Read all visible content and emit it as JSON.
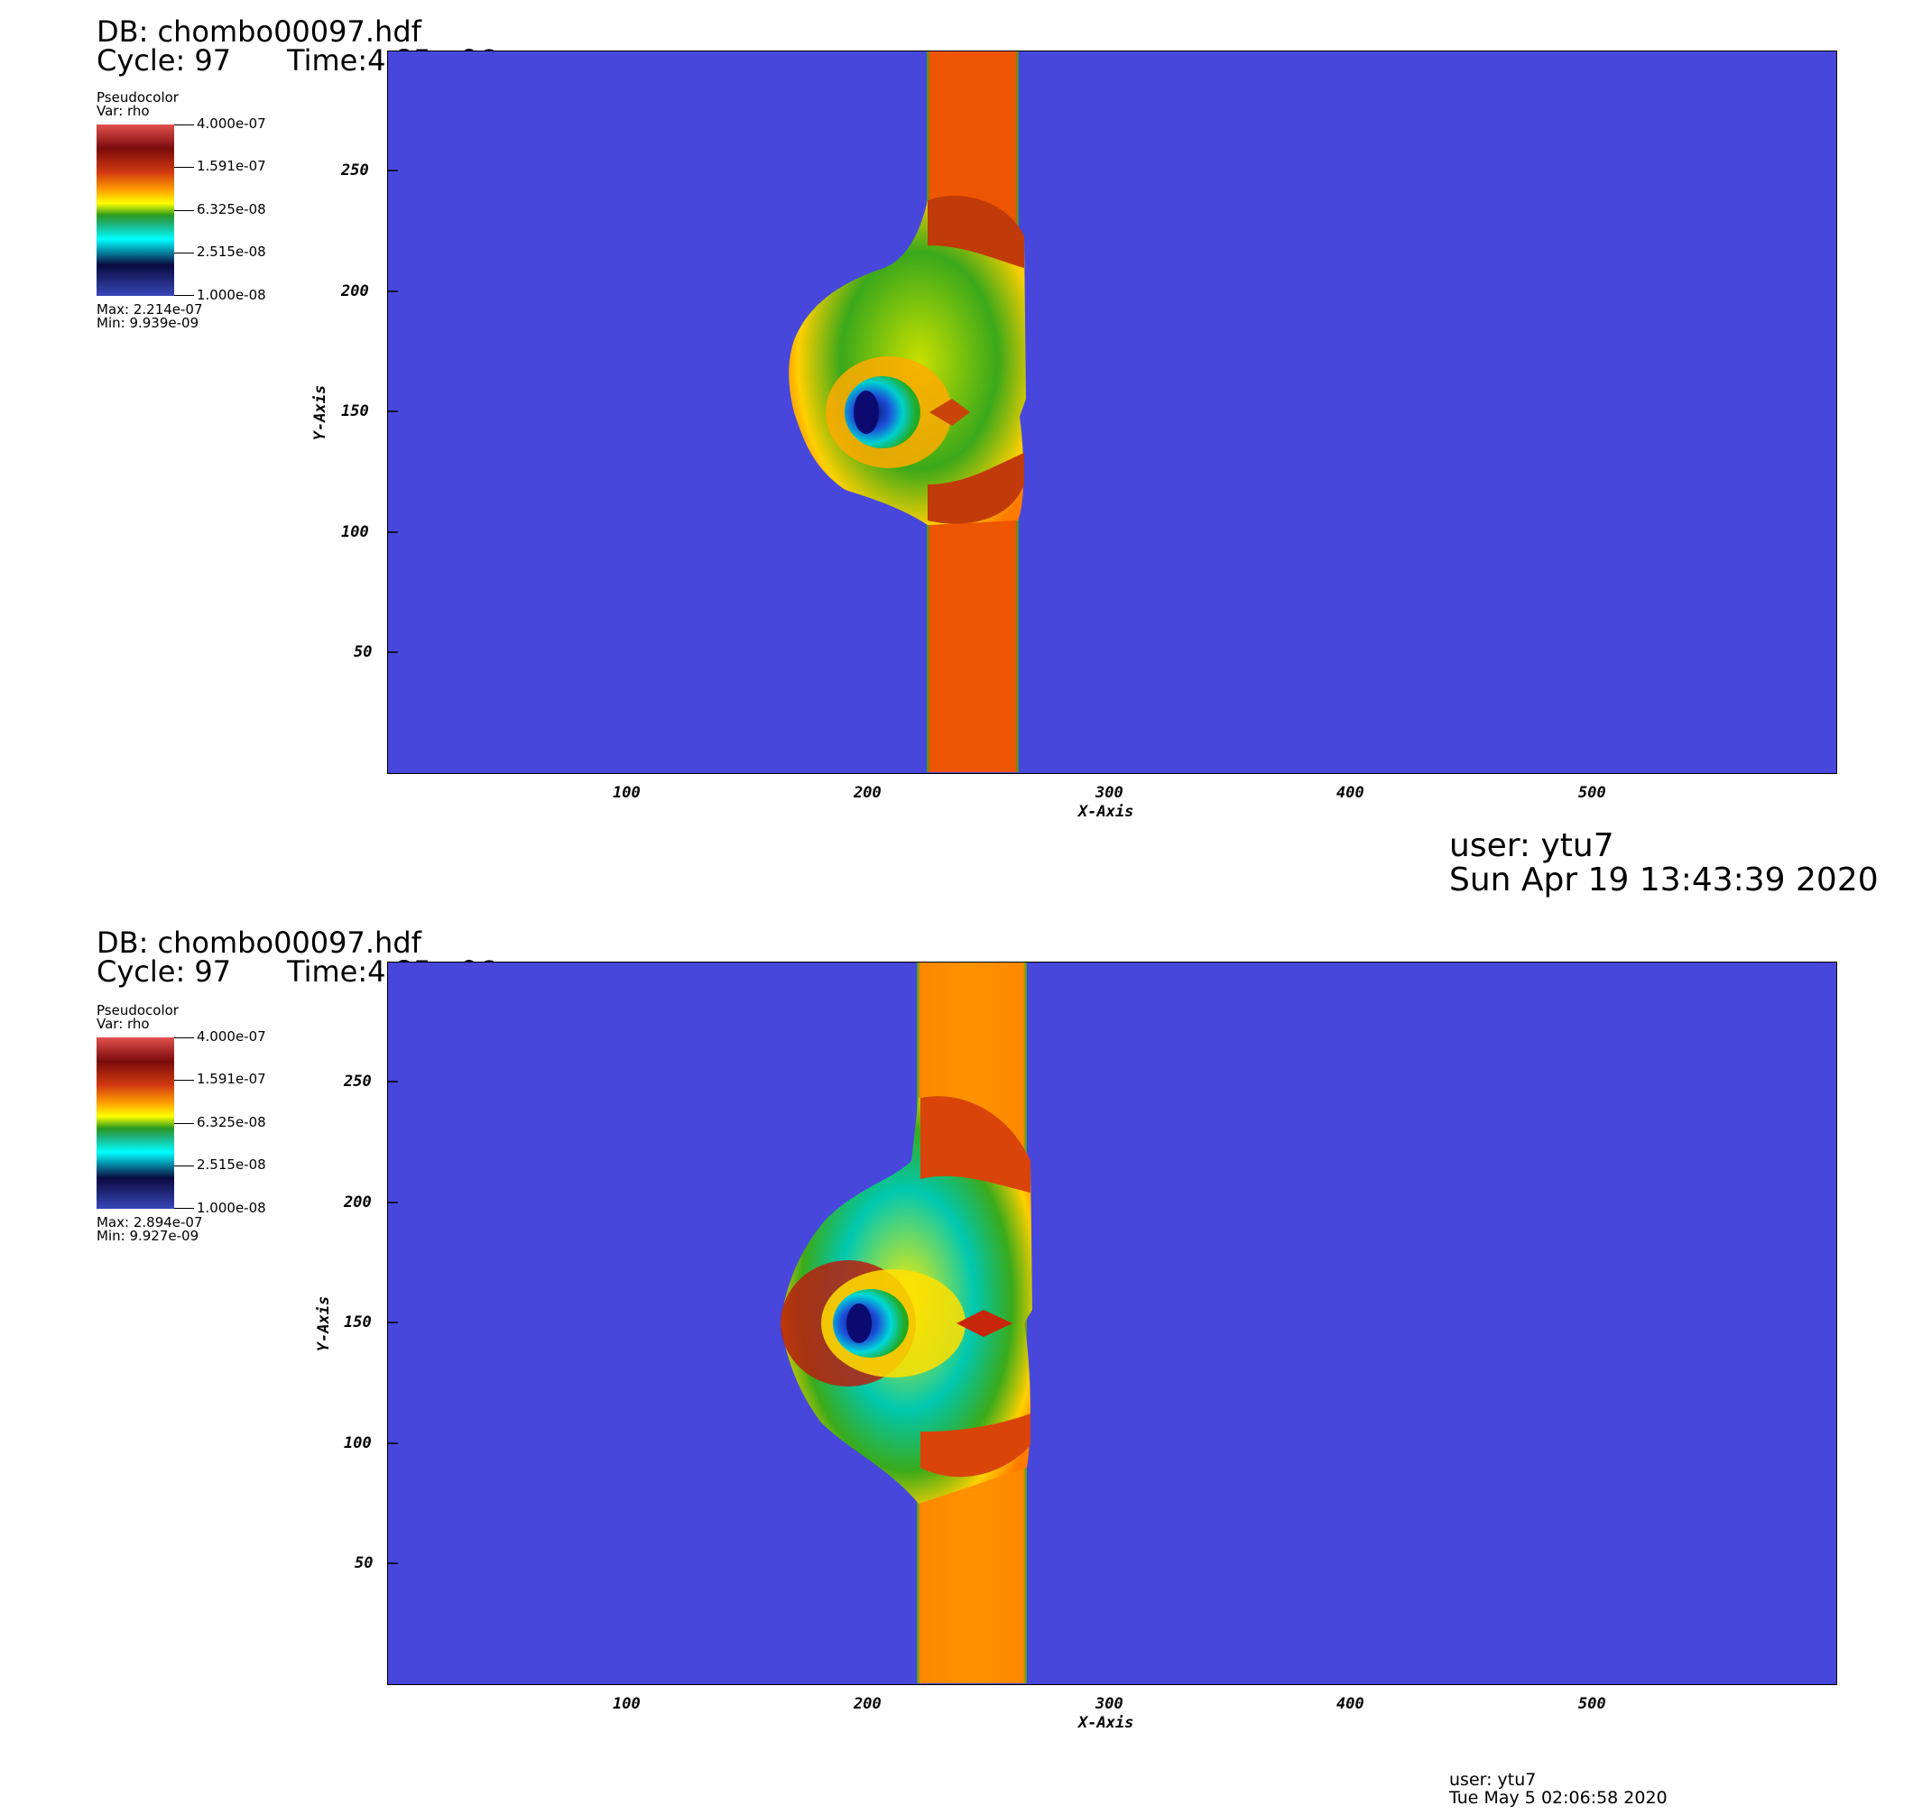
{
  "panels": [
    {
      "db_label": "DB: chombo00097.hdf",
      "cycle_label": "Cycle: 97",
      "time_label": "Time:4.85e-06",
      "legend": {
        "plot_type": "Pseudocolor",
        "var": "Var: rho",
        "ticks": [
          "4.000e-07",
          "1.591e-07",
          "6.325e-08",
          "2.515e-08",
          "1.000e-08"
        ],
        "max": "Max:  2.214e-07",
        "min": "Min:  9.939e-09"
      },
      "colors": {
        "background": "#4747db",
        "slab": "#ee5500"
      },
      "user": "user: ytu7",
      "timestamp": "Sun Apr 19 13:43:39 2020"
    },
    {
      "db_label": "DB: chombo00097.hdf",
      "cycle_label": "Cycle: 97",
      "time_label": "Time:4.85e-06",
      "legend": {
        "plot_type": "Pseudocolor",
        "var": "Var: rho",
        "ticks": [
          "4.000e-07",
          "1.591e-07",
          "6.325e-08",
          "2.515e-08",
          "1.000e-08"
        ],
        "max": "Max:  2.894e-07",
        "min": "Min:  9.927e-09"
      },
      "colors": {
        "background": "#4747db",
        "slab": "#ff8800"
      },
      "user": "user: ytu7",
      "timestamp": "Tue May  5 02:06:58 2020"
    }
  ],
  "axes": {
    "x_title": "X-Axis",
    "y_title": "Y-Axis",
    "x_ticks": [
      "100",
      "200",
      "300",
      "400",
      "500"
    ],
    "y_ticks": [
      "250",
      "200",
      "150",
      "100",
      "50"
    ]
  }
}
